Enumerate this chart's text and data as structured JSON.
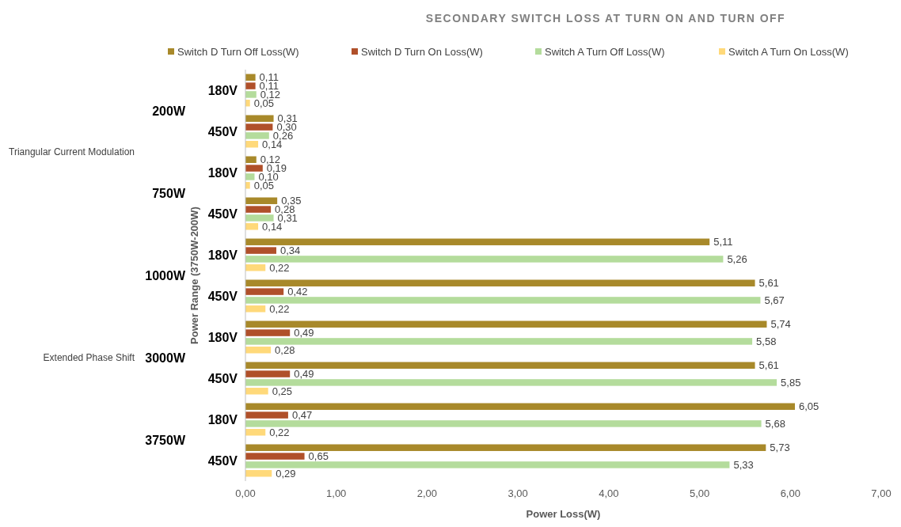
{
  "chart_data": {
    "type": "bar",
    "orientation": "horizontal",
    "title": "SECONDARY SWITCH LOSS AT TURN ON AND TURN OFF",
    "xlabel": "Power Loss(W)",
    "ylabel": "Power Range (3750W-200W)",
    "categories": [
      "180V",
      "450V",
      "180V",
      "450V",
      "180V",
      "450V",
      "180V",
      "450V",
      "180V",
      "450V"
    ],
    "annotations": [
      "200W",
      "750W",
      "1000W",
      "3000W",
      "3750W",
      "Triangular Current Modulation",
      "Extended Phase Shift"
    ],
    "series": [
      {
        "name": "Switch D Turn Off Loss(W)",
        "color": "#a8892a",
        "values": [
          0.11,
          0.31,
          0.12,
          0.35,
          5.11,
          5.61,
          5.74,
          5.61,
          6.05,
          5.73
        ],
        "value_labels": [
          "0,11",
          "0,31",
          "0,12",
          "0,35",
          "5,11",
          "5,61",
          "5,74",
          "5,61",
          "6,05",
          "5,73"
        ]
      },
      {
        "name": "Switch D Turn On Loss(W)",
        "color": "#b0502a",
        "values": [
          0.11,
          0.3,
          0.19,
          0.28,
          0.34,
          0.42,
          0.49,
          0.49,
          0.47,
          0.65
        ],
        "value_labels": [
          "0,11",
          "0,30",
          "0,19",
          "0,28",
          "0,34",
          "0,42",
          "0,49",
          "0,49",
          "0,47",
          "0,65"
        ]
      },
      {
        "name": "Switch A Turn Off Loss(W)",
        "color": "#b4dc9c",
        "values": [
          0.12,
          0.26,
          0.1,
          0.31,
          5.26,
          5.67,
          5.58,
          5.85,
          5.68,
          5.33
        ],
        "value_labels": [
          "0,12",
          "0,26",
          "0,10",
          "0,31",
          "5,26",
          "5,67",
          "5,58",
          "5,85",
          "5,68",
          "5,33"
        ]
      },
      {
        "name": "Switch A Turn On Loss(W)",
        "color": "#ffd97a",
        "values": [
          0.05,
          0.14,
          0.05,
          0.14,
          0.22,
          0.22,
          0.28,
          0.25,
          0.22,
          0.29
        ],
        "value_labels": [
          "0,05",
          "0,14",
          "0,05",
          "0,14",
          "0,22",
          "0,22",
          "0,28",
          "0,25",
          "0,22",
          "0,29"
        ]
      }
    ],
    "xlim": [
      0,
      7
    ],
    "xticks": [
      {
        "value": 0,
        "label": "0,00"
      },
      {
        "value": 1,
        "label": "1,00"
      },
      {
        "value": 2,
        "label": "2,00"
      },
      {
        "value": 3,
        "label": "3,00"
      },
      {
        "value": 4,
        "label": "4,00"
      },
      {
        "value": 5,
        "label": "5,00"
      },
      {
        "value": 6,
        "label": "6,00"
      },
      {
        "value": 7,
        "label": "7,00"
      }
    ],
    "grid": false,
    "legend": "top"
  }
}
